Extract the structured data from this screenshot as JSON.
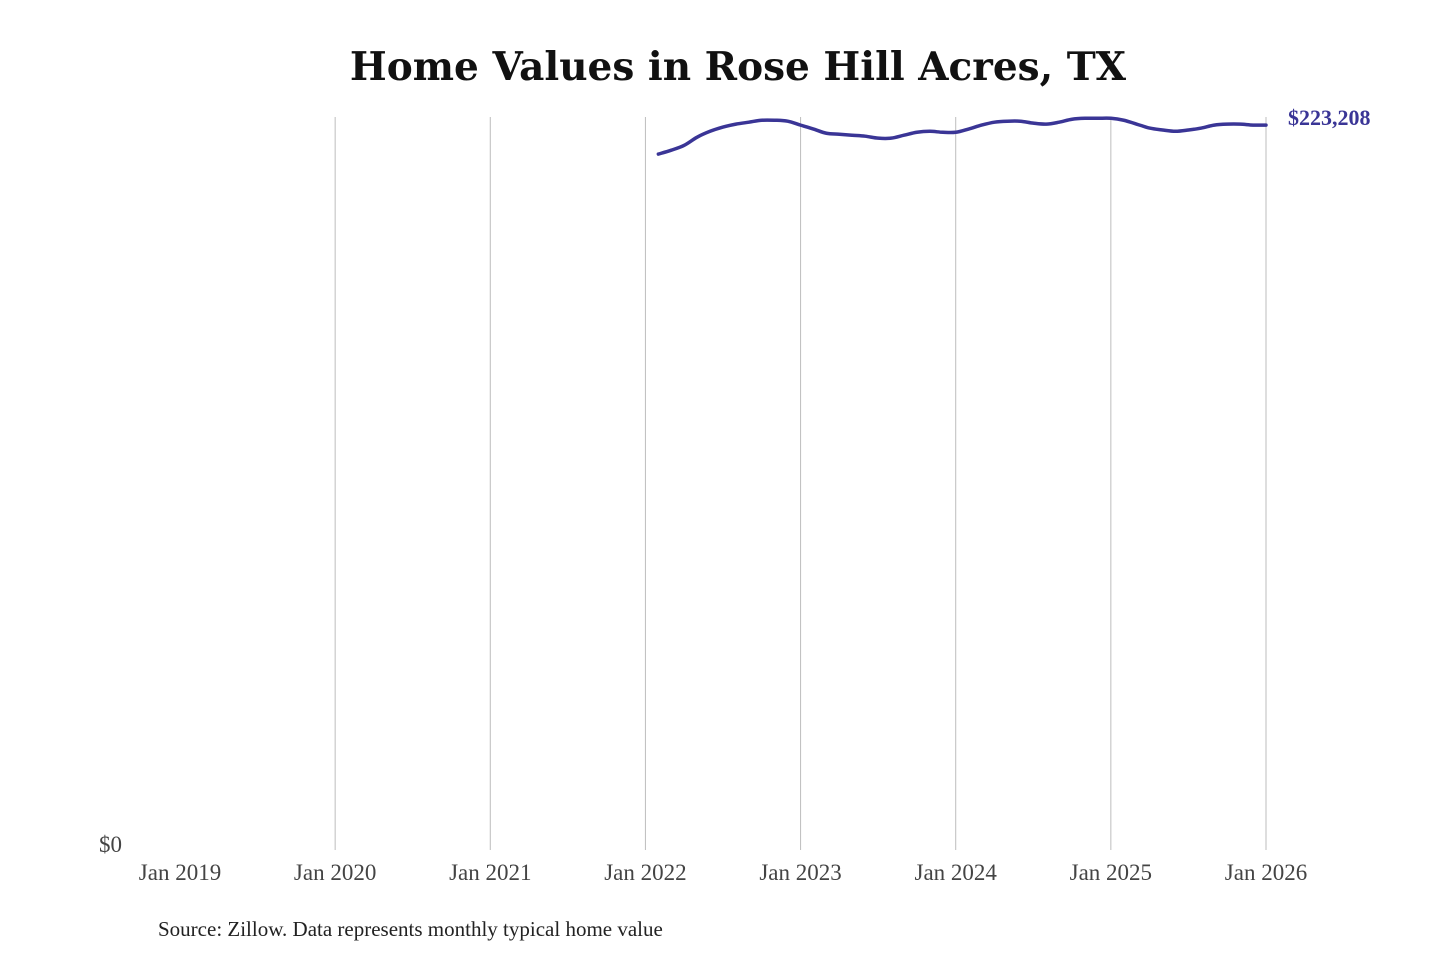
{
  "chart_data": {
    "type": "line",
    "title": "Home Values in Rose Hill Acres, TX",
    "source": "Source: Zillow. Data represents monthly typical home value",
    "xlabel": "",
    "ylabel": "",
    "x_ticks": [
      "Jan 2019",
      "Jan 2020",
      "Jan 2021",
      "Jan 2022",
      "Jan 2023",
      "Jan 2024",
      "Jan 2025",
      "Jan 2026"
    ],
    "y_ticks": [
      "$0"
    ],
    "ylim": [
      0,
      226000
    ],
    "xlim": [
      "2019-01",
      "2026-01"
    ],
    "grid": "vertical",
    "line_color": "#3a3596",
    "end_label": "$223,208",
    "series": [
      {
        "start": "2022-02",
        "frequency": "monthly",
        "values": [
          214300,
          215500,
          217000,
          219500,
          221300,
          222600,
          223500,
          224100,
          224700,
          224700,
          224400,
          223200,
          222000,
          220700,
          220400,
          220100,
          219800,
          219200,
          219200,
          220100,
          221000,
          221300,
          221000,
          221000,
          222000,
          223200,
          224100,
          224400,
          224400,
          223800,
          223500,
          224100,
          225000,
          225300,
          225300,
          225300,
          224700,
          223500,
          222300,
          221700,
          221300,
          221700,
          222300,
          223200,
          223500,
          223500,
          223200,
          223208
        ]
      }
    ]
  }
}
